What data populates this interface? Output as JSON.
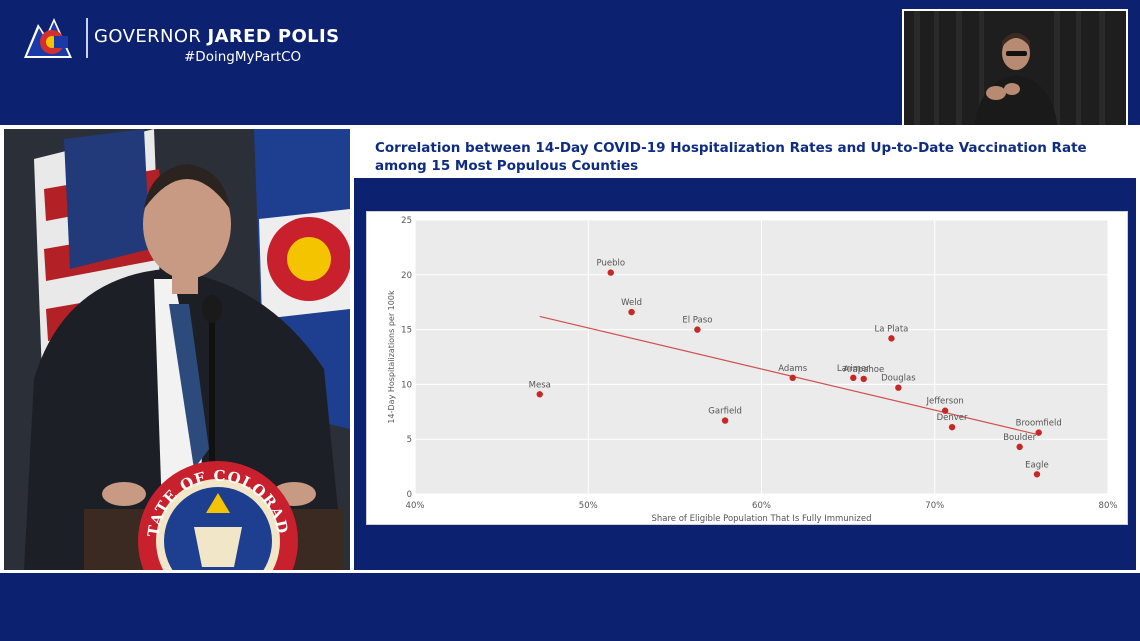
{
  "header": {
    "title_prefix": "GOVERNOR ",
    "title_name": "JARED POLIS",
    "hashtag": "#DoingMyPartCO"
  },
  "slide": {
    "title": "Correlation between 14-Day COVID-19 Hospitalization Rates and Up-to-Date Vaccination Rate among 15 Most Populous Counties"
  },
  "seal": {
    "text": "STATE OF COLORADO"
  },
  "colors": {
    "navy": "#0c2170",
    "title_blue": "#0e2c82",
    "point": "#c62828",
    "trendline": "#d05050",
    "plot_bg": "#ebebeb"
  },
  "chart_data": {
    "type": "scatter",
    "xlabel": "Share of Eligible Population That Is Fully Immunized",
    "ylabel": "14-Day Hospitalizations per 100k",
    "xlim": [
      40,
      80
    ],
    "ylim": [
      0,
      25
    ],
    "xticks": [
      40,
      50,
      60,
      70,
      80
    ],
    "xtick_labels": [
      "40%",
      "50%",
      "60%",
      "70%",
      "80%"
    ],
    "yticks": [
      0,
      5,
      10,
      15,
      20,
      25
    ],
    "ytick_labels": [
      "0",
      "5",
      "10",
      "15",
      "20",
      "25"
    ],
    "grid": true,
    "points": [
      {
        "label": "Pueblo",
        "x": 51.3,
        "y": 20.2
      },
      {
        "label": "Weld",
        "x": 52.5,
        "y": 16.6
      },
      {
        "label": "El Paso",
        "x": 56.3,
        "y": 15.0
      },
      {
        "label": "La Plata",
        "x": 67.5,
        "y": 14.2
      },
      {
        "label": "Mesa",
        "x": 47.2,
        "y": 9.1
      },
      {
        "label": "Adams",
        "x": 61.8,
        "y": 10.6
      },
      {
        "label": "Larimer",
        "x": 65.3,
        "y": 10.6
      },
      {
        "label": "Arapahoe",
        "x": 65.9,
        "y": 10.5
      },
      {
        "label": "Douglas",
        "x": 67.9,
        "y": 9.7
      },
      {
        "label": "Garfield",
        "x": 57.9,
        "y": 6.7
      },
      {
        "label": "Jefferson",
        "x": 70.6,
        "y": 7.6
      },
      {
        "label": "Denver",
        "x": 71.0,
        "y": 6.1
      },
      {
        "label": "Broomfield",
        "x": 76.0,
        "y": 5.6
      },
      {
        "label": "Boulder",
        "x": 74.9,
        "y": 4.3
      },
      {
        "label": "Eagle",
        "x": 75.9,
        "y": 1.8
      }
    ],
    "trendline": {
      "x": [
        47.2,
        76.0
      ],
      "y": [
        16.2,
        5.4
      ]
    }
  }
}
